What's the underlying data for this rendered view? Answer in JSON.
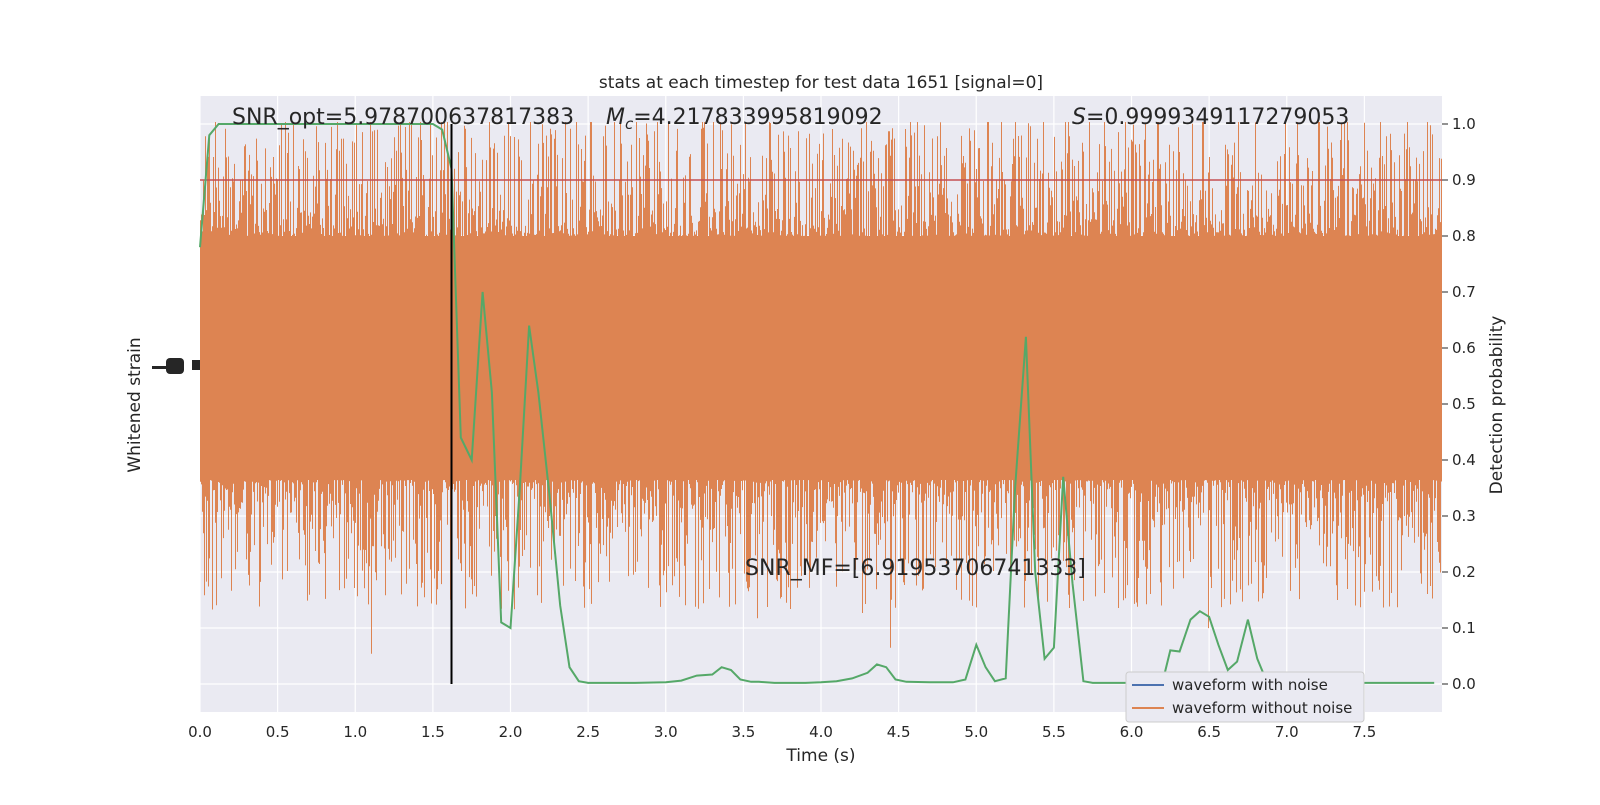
{
  "chart_data": {
    "type": "line",
    "title": "stats at each timestep for test data 1651 [signal=0]",
    "xlabel": "Time (s)",
    "ylabel_left": "Whitened strain",
    "ylabel_right": "Detection probability",
    "xlim": [
      0.0,
      8.0
    ],
    "ylim_right": [
      -0.05,
      1.05
    ],
    "x_ticks": [
      "0.0",
      "0.5",
      "1.0",
      "1.5",
      "2.0",
      "2.5",
      "3.0",
      "3.5",
      "4.0",
      "4.5",
      "5.0",
      "5.5",
      "6.0",
      "6.5",
      "7.0",
      "7.5"
    ],
    "y_right_ticks": [
      "0.0",
      "0.1",
      "0.2",
      "0.3",
      "0.4",
      "0.5",
      "0.6",
      "0.7",
      "0.8",
      "0.9",
      "1.0"
    ],
    "grid": true,
    "annotations": {
      "snr_opt": "SNR_opt=5.978700637817383",
      "mc_symbol": "M",
      "mc_sub": "c",
      "mc_value": "=4.217833995819092",
      "s_symbol": "S",
      "s_value": "=0.9999349117279053",
      "snr_mf": "SNR_MF=[6.91953706741333]"
    },
    "legend": {
      "placement": "lower-right",
      "entries": [
        {
          "label": "waveform with noise",
          "color": "#4c72b0"
        },
        {
          "label": "waveform without noise",
          "color": "#dd8452"
        }
      ]
    },
    "threshold": {
      "value": 0.9,
      "color": "#c44e52"
    },
    "vertical_marker_x": 1.62,
    "colors": {
      "noise_strain": "#dd8452",
      "probability": "#55a868",
      "background": "#eaeaf2"
    },
    "detection_probability": {
      "x": [
        0.0,
        0.06,
        0.12,
        0.18,
        0.25,
        0.5,
        0.75,
        1.0,
        1.25,
        1.5,
        1.56,
        1.62,
        1.68,
        1.75,
        1.82,
        1.88,
        1.94,
        2.0,
        2.06,
        2.12,
        2.18,
        2.25,
        2.32,
        2.38,
        2.44,
        2.5,
        2.6,
        2.8,
        3.0,
        3.1,
        3.2,
        3.3,
        3.36,
        3.42,
        3.48,
        3.55,
        3.6,
        3.7,
        3.8,
        3.9,
        4.0,
        4.1,
        4.2,
        4.3,
        4.36,
        4.42,
        4.48,
        4.55,
        4.7,
        4.85,
        4.93,
        5.0,
        5.06,
        5.12,
        5.19,
        5.25,
        5.32,
        5.38,
        5.44,
        5.5,
        5.56,
        5.62,
        5.69,
        5.75,
        5.8,
        5.9,
        6.0,
        6.1,
        6.2,
        6.25,
        6.31,
        6.38,
        6.44,
        6.5,
        6.56,
        6.62,
        6.68,
        6.75,
        6.81,
        6.87,
        6.93,
        7.0,
        7.1,
        7.3,
        7.5,
        7.7,
        7.95
      ],
      "y": [
        0.78,
        0.98,
        1.0,
        1.0,
        1.0,
        1.0,
        1.0,
        1.0,
        1.0,
        1.0,
        0.99,
        0.92,
        0.44,
        0.4,
        0.7,
        0.52,
        0.11,
        0.1,
        0.35,
        0.64,
        0.52,
        0.34,
        0.14,
        0.03,
        0.005,
        0.002,
        0.002,
        0.002,
        0.003,
        0.006,
        0.015,
        0.017,
        0.03,
        0.025,
        0.008,
        0.004,
        0.004,
        0.002,
        0.002,
        0.002,
        0.003,
        0.005,
        0.01,
        0.02,
        0.035,
        0.03,
        0.008,
        0.004,
        0.003,
        0.003,
        0.008,
        0.07,
        0.03,
        0.005,
        0.01,
        0.35,
        0.62,
        0.2,
        0.045,
        0.065,
        0.37,
        0.18,
        0.005,
        0.002,
        0.002,
        0.002,
        0.002,
        0.002,
        0.004,
        0.06,
        0.058,
        0.115,
        0.13,
        0.12,
        0.07,
        0.025,
        0.04,
        0.115,
        0.045,
        0.005,
        0.003,
        0.002,
        0.002,
        0.002,
        0.002,
        0.002,
        0.002
      ]
    }
  }
}
